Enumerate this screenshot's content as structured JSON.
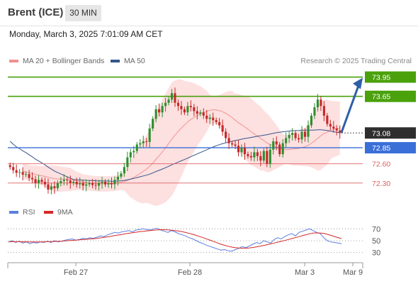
{
  "header": {
    "instrument": "Brent (ICE)",
    "interval": "30 MIN"
  },
  "timestamp": "Monday, March 3, 2025 7:01:09 AM CET",
  "legend": {
    "bollinger_label": "MA 20 + Bollinger Bands",
    "ma50_label": "MA 50",
    "credit": "Research © 2025 Trading Central"
  },
  "rsi_legend": {
    "rsi_label": "RSI",
    "ma9_label": "9MA"
  },
  "colors": {
    "resistance": "#4aa10b",
    "support_blue": "#3a6fd8",
    "support_red": "#e06060",
    "current_price_bg": "#2e2e2e",
    "candle_up": "#2f8f2f",
    "candle_down": "#c62828",
    "bollinger": "#f8a0a0",
    "ma50": "#34568b",
    "rsi": "#5b7fe0",
    "rsi_ma": "#d62828",
    "arrow": "#2f5fa8"
  },
  "chart_data": [
    {
      "type": "candlestick",
      "title": "Brent (ICE)",
      "interval": "30 MIN",
      "x_ticks": [
        "Feb 27",
        "Feb 28",
        "Mar 3",
        "Mar 9"
      ],
      "ylim": [
        72.0,
        74.1
      ],
      "levels": [
        {
          "value": "73.95",
          "kind": "resistance"
        },
        {
          "value": "73.65",
          "kind": "resistance"
        },
        {
          "value": "73.08",
          "kind": "current"
        },
        {
          "value": "72.85",
          "kind": "support-pivot"
        },
        {
          "value": "72.60",
          "kind": "support"
        },
        {
          "value": "72.30",
          "kind": "support"
        }
      ],
      "close_series": [
        72.55,
        72.5,
        72.46,
        72.47,
        72.43,
        72.44,
        72.38,
        72.36,
        72.3,
        72.35,
        72.32,
        72.28,
        72.2,
        72.25,
        72.22,
        72.3,
        72.33,
        72.35,
        72.34,
        72.3,
        72.32,
        72.28,
        72.3,
        72.26,
        72.28,
        72.3,
        72.27,
        72.26,
        72.3,
        72.32,
        72.28,
        72.3,
        72.28,
        72.35,
        72.4,
        72.45,
        72.55,
        72.7,
        72.78,
        72.8,
        72.9,
        72.92,
        72.95,
        72.94,
        73.15,
        73.3,
        73.45,
        73.4,
        73.5,
        73.55,
        73.6,
        73.7,
        73.55,
        73.5,
        73.45,
        73.4,
        73.5,
        73.48,
        73.42,
        73.38,
        73.4,
        73.35,
        73.3,
        73.32,
        73.28,
        73.25,
        73.2,
        73.1,
        73.0,
        72.92,
        72.9,
        72.88,
        72.78,
        72.85,
        72.75,
        72.72,
        72.7,
        72.78,
        72.72,
        72.65,
        72.8,
        72.6,
        72.82,
        72.95,
        72.9,
        72.75,
        72.92,
        73.0,
        73.05,
        73.08,
        73.0,
        72.98,
        73.1,
        73.02,
        73.2,
        73.35,
        73.48,
        73.6,
        73.5,
        73.35,
        73.22,
        73.18,
        73.15,
        73.12,
        73.08
      ],
      "arrow_target": "73.95"
    },
    {
      "type": "line",
      "title": "RSI",
      "series": [
        {
          "name": "RSI"
        },
        {
          "name": "9MA"
        }
      ],
      "y_ticks": [
        "70",
        "50",
        "30"
      ],
      "ylim": [
        20,
        80
      ],
      "rsi_values": [
        48,
        50,
        47,
        49,
        46,
        48,
        45,
        47,
        46,
        48,
        47,
        49,
        47,
        50,
        48,
        49,
        51,
        52,
        53,
        51,
        52,
        54,
        53,
        55,
        54,
        56,
        58,
        57,
        60,
        62,
        64,
        63,
        65,
        66,
        67,
        65,
        68,
        69,
        70,
        69,
        68,
        70,
        71,
        68,
        66,
        64,
        67,
        65,
        62,
        60,
        58,
        55,
        53,
        50,
        47,
        45,
        42,
        40,
        38,
        36,
        34,
        35,
        33,
        32,
        35,
        37,
        40,
        38,
        41,
        44,
        47,
        45,
        50,
        48,
        46,
        52,
        55,
        53,
        57,
        60,
        62,
        58,
        64,
        66,
        68,
        70,
        67,
        64,
        62,
        55,
        50,
        48,
        47,
        46,
        45
      ],
      "ma_values": [
        48,
        48.5,
        48.2,
        48.4,
        48.1,
        48.2,
        47.9,
        48,
        47.8,
        48,
        48.1,
        48.3,
        48.4,
        48.7,
        48.9,
        49.2,
        49.6,
        50.1,
        50.6,
        51,
        51.4,
        51.9,
        52.4,
        52.9,
        53.4,
        54,
        54.8,
        55.6,
        56.5,
        57.5,
        58.6,
        59.6,
        60.6,
        61.6,
        62.6,
        63.4,
        64.3,
        65.2,
        66,
        66.6,
        67.2,
        67.8,
        68.3,
        68.5,
        68.5,
        68.2,
        67.8,
        67.2,
        66.3,
        65.2,
        63.9,
        62.4,
        60.8,
        59,
        57,
        55,
        52.8,
        50.6,
        48.4,
        46.2,
        44,
        42.2,
        40.6,
        39.2,
        38.2,
        37.6,
        37.3,
        37.4,
        37.8,
        38.6,
        39.6,
        40.7,
        42,
        43.3,
        44.6,
        46,
        47.5,
        48.9,
        50.4,
        52,
        53.6,
        55.2,
        56.9,
        58.5,
        60.1,
        61.7,
        62.8,
        63.2,
        63,
        62.2,
        60.8,
        59,
        57.1,
        55.3,
        53.5
      ]
    }
  ]
}
